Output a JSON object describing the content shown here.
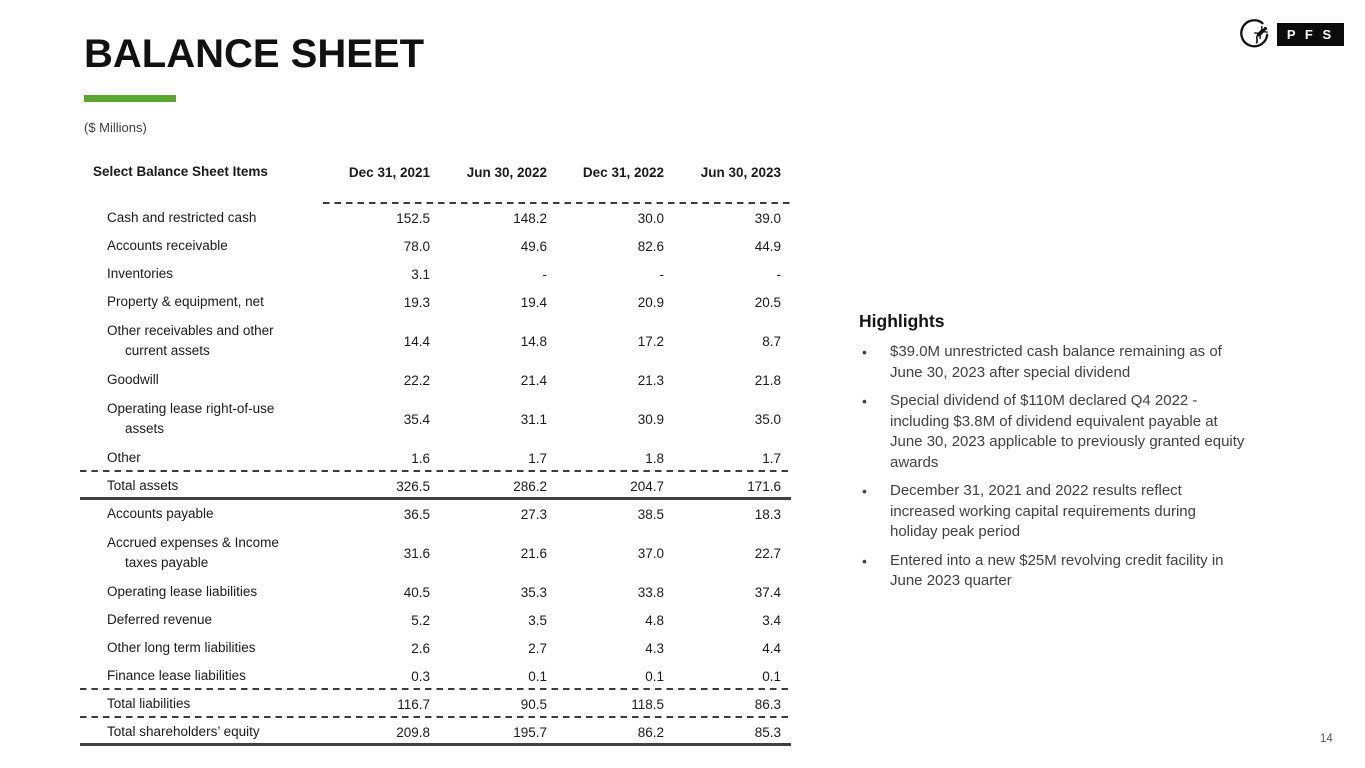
{
  "slide": {
    "title": "BALANCE SHEET",
    "units_label": "($ Millions)",
    "page_number": "14"
  },
  "logo": {
    "gecko_icon": "gecko-in-circle",
    "pfs_text": "P F S"
  },
  "colors": {
    "accent_green": "#5BA62E",
    "rule_dark": "#414141",
    "highlight_text": "#414141"
  },
  "table": {
    "header_label": "Select Balance Sheet Items",
    "columns": [
      "Dec 31, 2021",
      "Jun 30, 2022",
      "Dec 31, 2022",
      "Jun 30, 2023"
    ],
    "rows": [
      {
        "label": "Cash and restricted cash",
        "values": [
          "152.5",
          "148.2",
          "30.0",
          "39.0"
        ]
      },
      {
        "label": "Accounts receivable",
        "values": [
          "78.0",
          "49.6",
          "82.6",
          "44.9"
        ]
      },
      {
        "label": "Inventories",
        "values": [
          "3.1",
          "-",
          "-",
          "-"
        ]
      },
      {
        "label": "Property & equipment, net",
        "values": [
          "19.3",
          "19.4",
          "20.9",
          "20.5"
        ]
      },
      {
        "label": "Other receivables and other",
        "label2": "current assets",
        "values": [
          "14.4",
          "14.8",
          "17.2",
          "8.7"
        ]
      },
      {
        "label": "Goodwill",
        "values": [
          "22.2",
          "21.4",
          "21.3",
          "21.8"
        ]
      },
      {
        "label": "Operating lease right-of-use",
        "label2": "assets",
        "values": [
          "35.4",
          "31.1",
          "30.9",
          "35.0"
        ]
      },
      {
        "label": "Other",
        "values": [
          "1.6",
          "1.7",
          "1.8",
          "1.7"
        ],
        "sep_after": "dashed"
      },
      {
        "label": "Total assets",
        "values": [
          "326.5",
          "286.2",
          "204.7",
          "171.6"
        ],
        "sep_after": "thick"
      },
      {
        "label": "Accounts payable",
        "values": [
          "36.5",
          "27.3",
          "38.5",
          "18.3"
        ]
      },
      {
        "label": "Accrued expenses & Income",
        "label2": "taxes payable",
        "values": [
          "31.6",
          "21.6",
          "37.0",
          "22.7"
        ]
      },
      {
        "label": "Operating lease liabilities",
        "values": [
          "40.5",
          "35.3",
          "33.8",
          "37.4"
        ]
      },
      {
        "label": "Deferred revenue",
        "values": [
          "5.2",
          "3.5",
          "4.8",
          "3.4"
        ]
      },
      {
        "label": "Other long term liabilities",
        "values": [
          "2.6",
          "2.7",
          "4.3",
          "4.4"
        ]
      },
      {
        "label": "Finance lease liabilities",
        "values": [
          "0.3",
          "0.1",
          "0.1",
          "0.1"
        ],
        "sep_after": "dashed"
      },
      {
        "label": "Total liabilities",
        "values": [
          "116.7",
          "90.5",
          "118.5",
          "86.3"
        ],
        "sep_after": "dashed"
      },
      {
        "label": "Total shareholders’ equity",
        "values": [
          "209.8",
          "195.7",
          "86.2",
          "85.3"
        ],
        "sep_after": "thick"
      }
    ]
  },
  "highlights": {
    "heading": "Highlights",
    "bullets": [
      {
        "lines": [
          "$39.0M unrestricted cash balance remaining as of",
          "June 30, 2023 after special dividend"
        ]
      },
      {
        "lines": [
          "Special dividend of $110M declared Q4 2022 -",
          "including $3.8M of dividend equivalent payable at",
          "June 30, 2023 applicable to previously granted equity",
          "awards"
        ]
      },
      {
        "lines": [
          "December 31, 2021 and 2022 results reflect",
          "increased working capital requirements during",
          "holiday peak period"
        ]
      },
      {
        "lines": [
          "Entered into a new $25M revolving credit facility in",
          "June 2023 quarter"
        ]
      }
    ]
  }
}
